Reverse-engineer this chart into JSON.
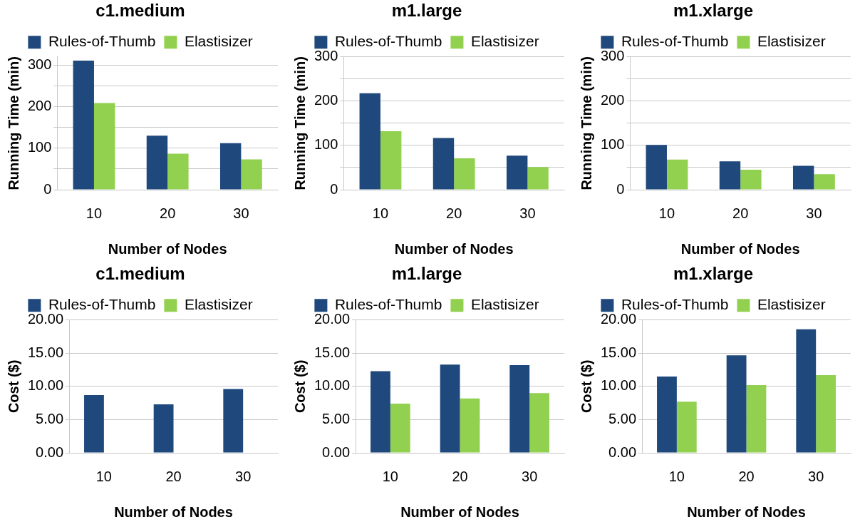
{
  "chart_data": [
    {
      "type": "bar",
      "title": "c1.medium",
      "xlabel": "Number of Nodes",
      "ylabel": "Running Time (min)",
      "categories": [
        "10",
        "20",
        "30"
      ],
      "series": [
        {
          "name": "Rules-of-Thumb",
          "color": "#1f497d",
          "values": [
            311,
            130,
            112
          ]
        },
        {
          "name": "Elastisizer",
          "color": "#92d050",
          "values": [
            209,
            87,
            73
          ]
        }
      ],
      "ylim": [
        0,
        320
      ],
      "yticks": [
        0,
        {
          "value": 50,
          "label": null
        },
        100,
        {
          "value": 150,
          "label": null
        },
        200,
        {
          "value": 250,
          "label": null
        },
        300
      ],
      "grid": "y",
      "legend": "top"
    },
    {
      "type": "bar",
      "title": "m1.large",
      "xlabel": "Number of Nodes",
      "ylabel": "Running Time (min)",
      "categories": [
        "10",
        "20",
        "30"
      ],
      "series": [
        {
          "name": "Rules-of-Thumb",
          "color": "#1f497d",
          "values": [
            218,
            117,
            77
          ]
        },
        {
          "name": "Elastisizer",
          "color": "#92d050",
          "values": [
            132,
            71,
            51
          ]
        }
      ],
      "ylim": [
        0,
        300
      ],
      "yticks": [
        0,
        {
          "value": 50,
          "label": null
        },
        100,
        {
          "value": 150,
          "label": null
        },
        200,
        {
          "value": 250,
          "label": null
        },
        300
      ],
      "grid": "y",
      "legend": "top"
    },
    {
      "type": "bar",
      "title": "m1.xlarge",
      "xlabel": "Number of Nodes",
      "ylabel": "Running Time (min)",
      "categories": [
        "10",
        "20",
        "30"
      ],
      "series": [
        {
          "name": "Rules-of-Thumb",
          "color": "#1f497d",
          "values": [
            101,
            64,
            54
          ]
        },
        {
          "name": "Elastisizer",
          "color": "#92d050",
          "values": [
            68,
            45,
            35
          ]
        }
      ],
      "ylim": [
        0,
        300
      ],
      "yticks": [
        0,
        {
          "value": 50,
          "label": null
        },
        100,
        {
          "value": 150,
          "label": null
        },
        200,
        {
          "value": 250,
          "label": null
        },
        300
      ],
      "grid": "y",
      "legend": "top"
    },
    {
      "type": "bar",
      "title": "c1.medium",
      "xlabel": "Number of Nodes",
      "ylabel": "Cost ($)",
      "categories": [
        "10",
        "20",
        "30"
      ],
      "series": [
        {
          "name": "Rules-of-Thumb",
          "color": "#1f497d",
          "values": [
            8.7,
            7.3,
            9.6
          ]
        },
        {
          "name": "Elastisizer",
          "color": "#92d050",
          "values": [
            null,
            null,
            null
          ]
        }
      ],
      "ylim": [
        0,
        20
      ],
      "yticks": [
        {
          "value": 0,
          "label": "0.00"
        },
        {
          "value": 5,
          "label": "5.00"
        },
        {
          "value": 10,
          "label": "10.00"
        },
        {
          "value": 15,
          "label": "15.00"
        },
        {
          "value": 20,
          "label": "20.00"
        }
      ],
      "grid": "y",
      "legend": "top"
    },
    {
      "type": "bar",
      "title": "m1.large",
      "xlabel": "Number of Nodes",
      "ylabel": "Cost ($)",
      "categories": [
        "10",
        "20",
        "30"
      ],
      "series": [
        {
          "name": "Rules-of-Thumb",
          "color": "#1f497d",
          "values": [
            12.3,
            13.3,
            13.2
          ]
        },
        {
          "name": "Elastisizer",
          "color": "#92d050",
          "values": [
            7.4,
            8.2,
            9.0
          ]
        }
      ],
      "ylim": [
        0,
        20
      ],
      "yticks": [
        {
          "value": 0,
          "label": "0.00"
        },
        {
          "value": 5,
          "label": "5.00"
        },
        {
          "value": 10,
          "label": "10.00"
        },
        {
          "value": 15,
          "label": "15.00"
        },
        {
          "value": 20,
          "label": "20.00"
        }
      ],
      "grid": "y",
      "legend": "top"
    },
    {
      "type": "bar",
      "title": "m1.xlarge",
      "xlabel": "Number of Nodes",
      "ylabel": "Cost ($)",
      "categories": [
        "10",
        "20",
        "30"
      ],
      "series": [
        {
          "name": "Rules-of-Thumb",
          "color": "#1f497d",
          "values": [
            11.5,
            14.7,
            18.6
          ]
        },
        {
          "name": "Elastisizer",
          "color": "#92d050",
          "values": [
            7.7,
            10.2,
            11.7
          ]
        }
      ],
      "ylim": [
        0,
        20
      ],
      "yticks": [
        {
          "value": 0,
          "label": "0.00"
        },
        {
          "value": 5,
          "label": "5.00"
        },
        {
          "value": 10,
          "label": "10.00"
        },
        {
          "value": 15,
          "label": "15.00"
        },
        {
          "value": 20,
          "label": "20.00"
        }
      ],
      "grid": "y",
      "legend": "top"
    }
  ]
}
